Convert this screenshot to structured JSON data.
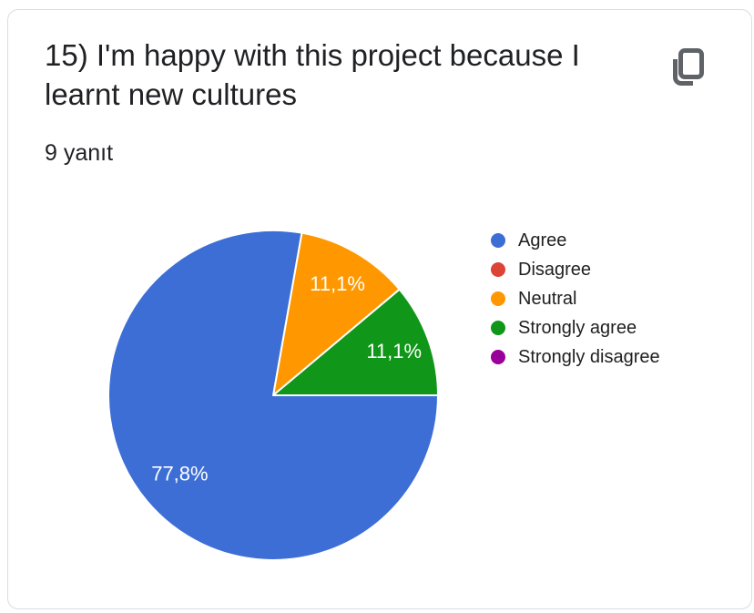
{
  "page": {
    "background": "#ffffff"
  },
  "card": {
    "border_color": "#dadce0",
    "background": "#ffffff"
  },
  "header": {
    "title": "15) I'm happy with this project because I learnt new cultures",
    "responses_count": "9 yanıt",
    "copy_button": {
      "icon": "content-copy",
      "color": "#5f6368"
    }
  },
  "chart_data": {
    "type": "pie",
    "title": "15) I'm happy with this project because I learnt new cultures",
    "responses_label": "9 yanıt",
    "total_responses": 9,
    "legend_position": "right",
    "start_angle_deg": 10,
    "label_color": "#ffffff",
    "slices": [
      {
        "label": "Agree",
        "count": 7,
        "percent": 77.8,
        "percent_label": "77,8%",
        "color": "#3c6ed5"
      },
      {
        "label": "Disagree",
        "count": 0,
        "percent": 0,
        "percent_label": "",
        "color": "#db4437"
      },
      {
        "label": "Neutral",
        "count": 1,
        "percent": 11.1,
        "percent_label": "11,1%",
        "color": "#ff9800"
      },
      {
        "label": "Strongly agree",
        "count": 1,
        "percent": 11.1,
        "percent_label": "11,1%",
        "color": "#109618"
      },
      {
        "label": "Strongly disagree",
        "count": 0,
        "percent": 0,
        "percent_label": "",
        "color": "#990099"
      }
    ],
    "draw_order": [
      2,
      3,
      0
    ]
  }
}
